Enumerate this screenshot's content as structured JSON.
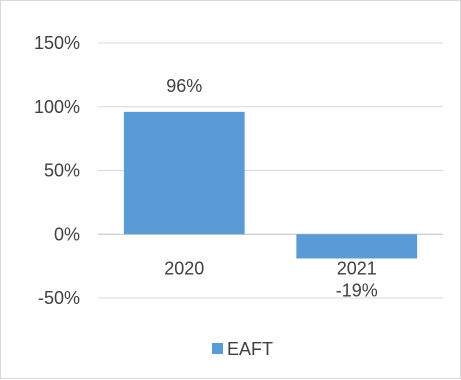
{
  "chart_data": {
    "type": "bar",
    "categories": [
      "2020",
      "2021"
    ],
    "series": [
      {
        "name": "EAFT",
        "values": [
          96,
          -19
        ],
        "color": "#5b9bd5"
      }
    ],
    "data_labels": [
      "96%",
      "-19%"
    ],
    "y_ticks": [
      150,
      100,
      50,
      0,
      -50
    ],
    "y_tick_labels": [
      "150%",
      "100%",
      "50%",
      "0%",
      "-50%"
    ],
    "ylim": [
      -50,
      150
    ],
    "grid": true,
    "legend_position": "bottom",
    "title": "",
    "xlabel": "",
    "ylabel": ""
  }
}
